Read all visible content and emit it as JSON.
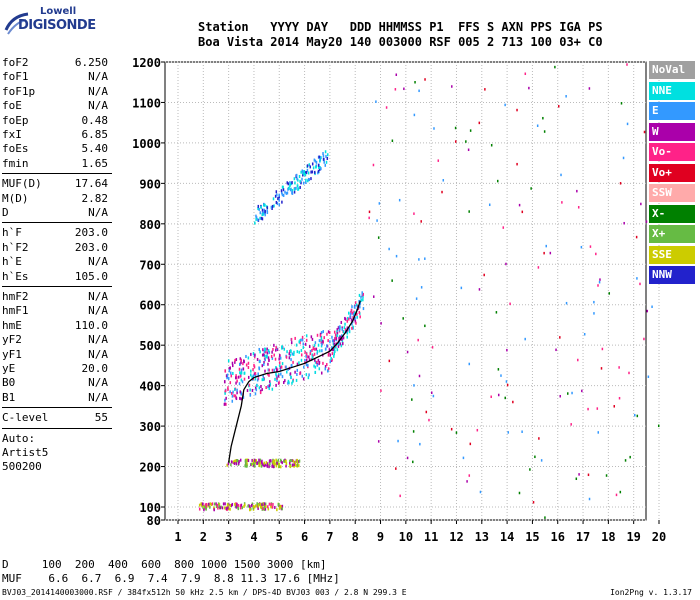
{
  "logo": {
    "line1": "Lowell",
    "line2": "DIGISONDE"
  },
  "header": {
    "line1": "Station   YYYY DAY   DDD HHMMSS P1  FFS S AXN PPS IGA PS",
    "line2": "Boa Vista 2014 May20 140 003000 RSF 005 2 713 100 03+ C0"
  },
  "params_group1": [
    {
      "k": "foF2",
      "v": "6.250"
    },
    {
      "k": "foF1",
      "v": "N/A"
    },
    {
      "k": "foF1p",
      "v": "N/A"
    },
    {
      "k": "foE",
      "v": "N/A"
    },
    {
      "k": "foEp",
      "v": "0.48"
    },
    {
      "k": "fxI",
      "v": "6.85"
    },
    {
      "k": "foEs",
      "v": "5.40"
    },
    {
      "k": "fmin",
      "v": "1.65"
    }
  ],
  "params_group2": [
    {
      "k": "MUF(D)",
      "v": "17.64"
    },
    {
      "k": "M(D)",
      "v": "2.82"
    },
    {
      "k": "D",
      "v": "N/A"
    }
  ],
  "params_group3": [
    {
      "k": "h`F",
      "v": "203.0"
    },
    {
      "k": "h`F2",
      "v": "203.0"
    },
    {
      "k": "h`E",
      "v": "N/A"
    },
    {
      "k": "h`Es",
      "v": "105.0"
    }
  ],
  "params_group4": [
    {
      "k": "hmF2",
      "v": "N/A"
    },
    {
      "k": "hmF1",
      "v": "N/A"
    },
    {
      "k": "hmE",
      "v": "110.0"
    },
    {
      "k": "yF2",
      "v": "N/A"
    },
    {
      "k": "yF1",
      "v": "N/A"
    },
    {
      "k": "yE",
      "v": "20.0"
    },
    {
      "k": "B0",
      "v": "N/A"
    },
    {
      "k": "B1",
      "v": "N/A"
    }
  ],
  "params_group5": [
    {
      "k": "C-level",
      "v": "55"
    }
  ],
  "params_group6": [
    {
      "k": "Auto:",
      "v": ""
    },
    {
      "k": "Artist5",
      "v": ""
    },
    {
      "k": "500200",
      "v": ""
    }
  ],
  "legend": [
    {
      "label": "NoVal",
      "color": "#a0a0a0"
    },
    {
      "label": "NNE",
      "color": "#00e0e0"
    },
    {
      "label": "E",
      "color": "#3399ff"
    },
    {
      "label": "W",
      "color": "#aa00aa"
    },
    {
      "label": "Vo-",
      "color": "#ff2288"
    },
    {
      "label": "Vo+",
      "color": "#e00020"
    },
    {
      "label": "SSW",
      "color": "#ffaaaa"
    },
    {
      "label": "X-",
      "color": "#008000"
    },
    {
      "label": "X+",
      "color": "#66bb44"
    },
    {
      "label": "SSE",
      "color": "#cccc00"
    },
    {
      "label": "NNW",
      "color": "#2222cc"
    }
  ],
  "bottom": {
    "line1": "D     100  200  400  600  800 1000 1500 3000 [km]",
    "line2": "MUF    6.6  6.7  6.9  7.4  7.9  8.8 11.3 17.6 [MHz]"
  },
  "footer": {
    "left": "BVJ03_2014140003000.RSF / 384fx512h 50 kHz 2.5 km / DPS-4D BVJ03 003 / 2.8 N 299.3 E",
    "right": "Ion2Png v. 1.3.17"
  },
  "chart_data": {
    "type": "scatter",
    "title": "",
    "xlabel": "",
    "ylabel": "",
    "xlim": [
      1,
      20
    ],
    "ylim": [
      80,
      1200
    ],
    "x_ticks": [
      1,
      2,
      3,
      4,
      5,
      6,
      7,
      8,
      9,
      10,
      11,
      12,
      13,
      14,
      15,
      16,
      17,
      18,
      19,
      20
    ],
    "y_ticks": [
      80,
      100,
      200,
      300,
      400,
      500,
      600,
      700,
      800,
      900,
      1000,
      1100,
      1200
    ],
    "grid": true,
    "series": [
      {
        "name": "trace",
        "color": "#000000",
        "x": [
          3.0,
          3.1,
          3.3,
          3.5,
          3.6,
          3.8,
          4.0,
          4.5,
          5.0,
          5.5,
          6.0,
          6.5,
          7.0,
          7.3,
          7.6,
          7.9,
          8.1,
          8.2
        ],
        "y": [
          210,
          250,
          300,
          350,
          390,
          410,
          420,
          430,
          435,
          445,
          455,
          470,
          485,
          505,
          530,
          560,
          590,
          610
        ]
      }
    ],
    "echo_regions": [
      {
        "x": [
          2.8,
          8.3
        ],
        "y": [
          380,
          620
        ],
        "colors": [
          "#aa00aa",
          "#ff2288",
          "#00e0e0",
          "#3399ff"
        ]
      },
      {
        "x": [
          4.0,
          6.9
        ],
        "y": [
          820,
          990
        ],
        "colors": [
          "#3399ff",
          "#00e0e0",
          "#2222cc"
        ]
      },
      {
        "x": [
          1.8,
          5.1
        ],
        "y": [
          98,
          112
        ],
        "colors": [
          "#aa00aa",
          "#ff2288",
          "#66bb44",
          "#cccc00"
        ]
      },
      {
        "x": [
          2.9,
          5.8
        ],
        "y": [
          203,
          220
        ],
        "colors": [
          "#aa00aa",
          "#cccc00",
          "#66bb44"
        ]
      }
    ]
  }
}
